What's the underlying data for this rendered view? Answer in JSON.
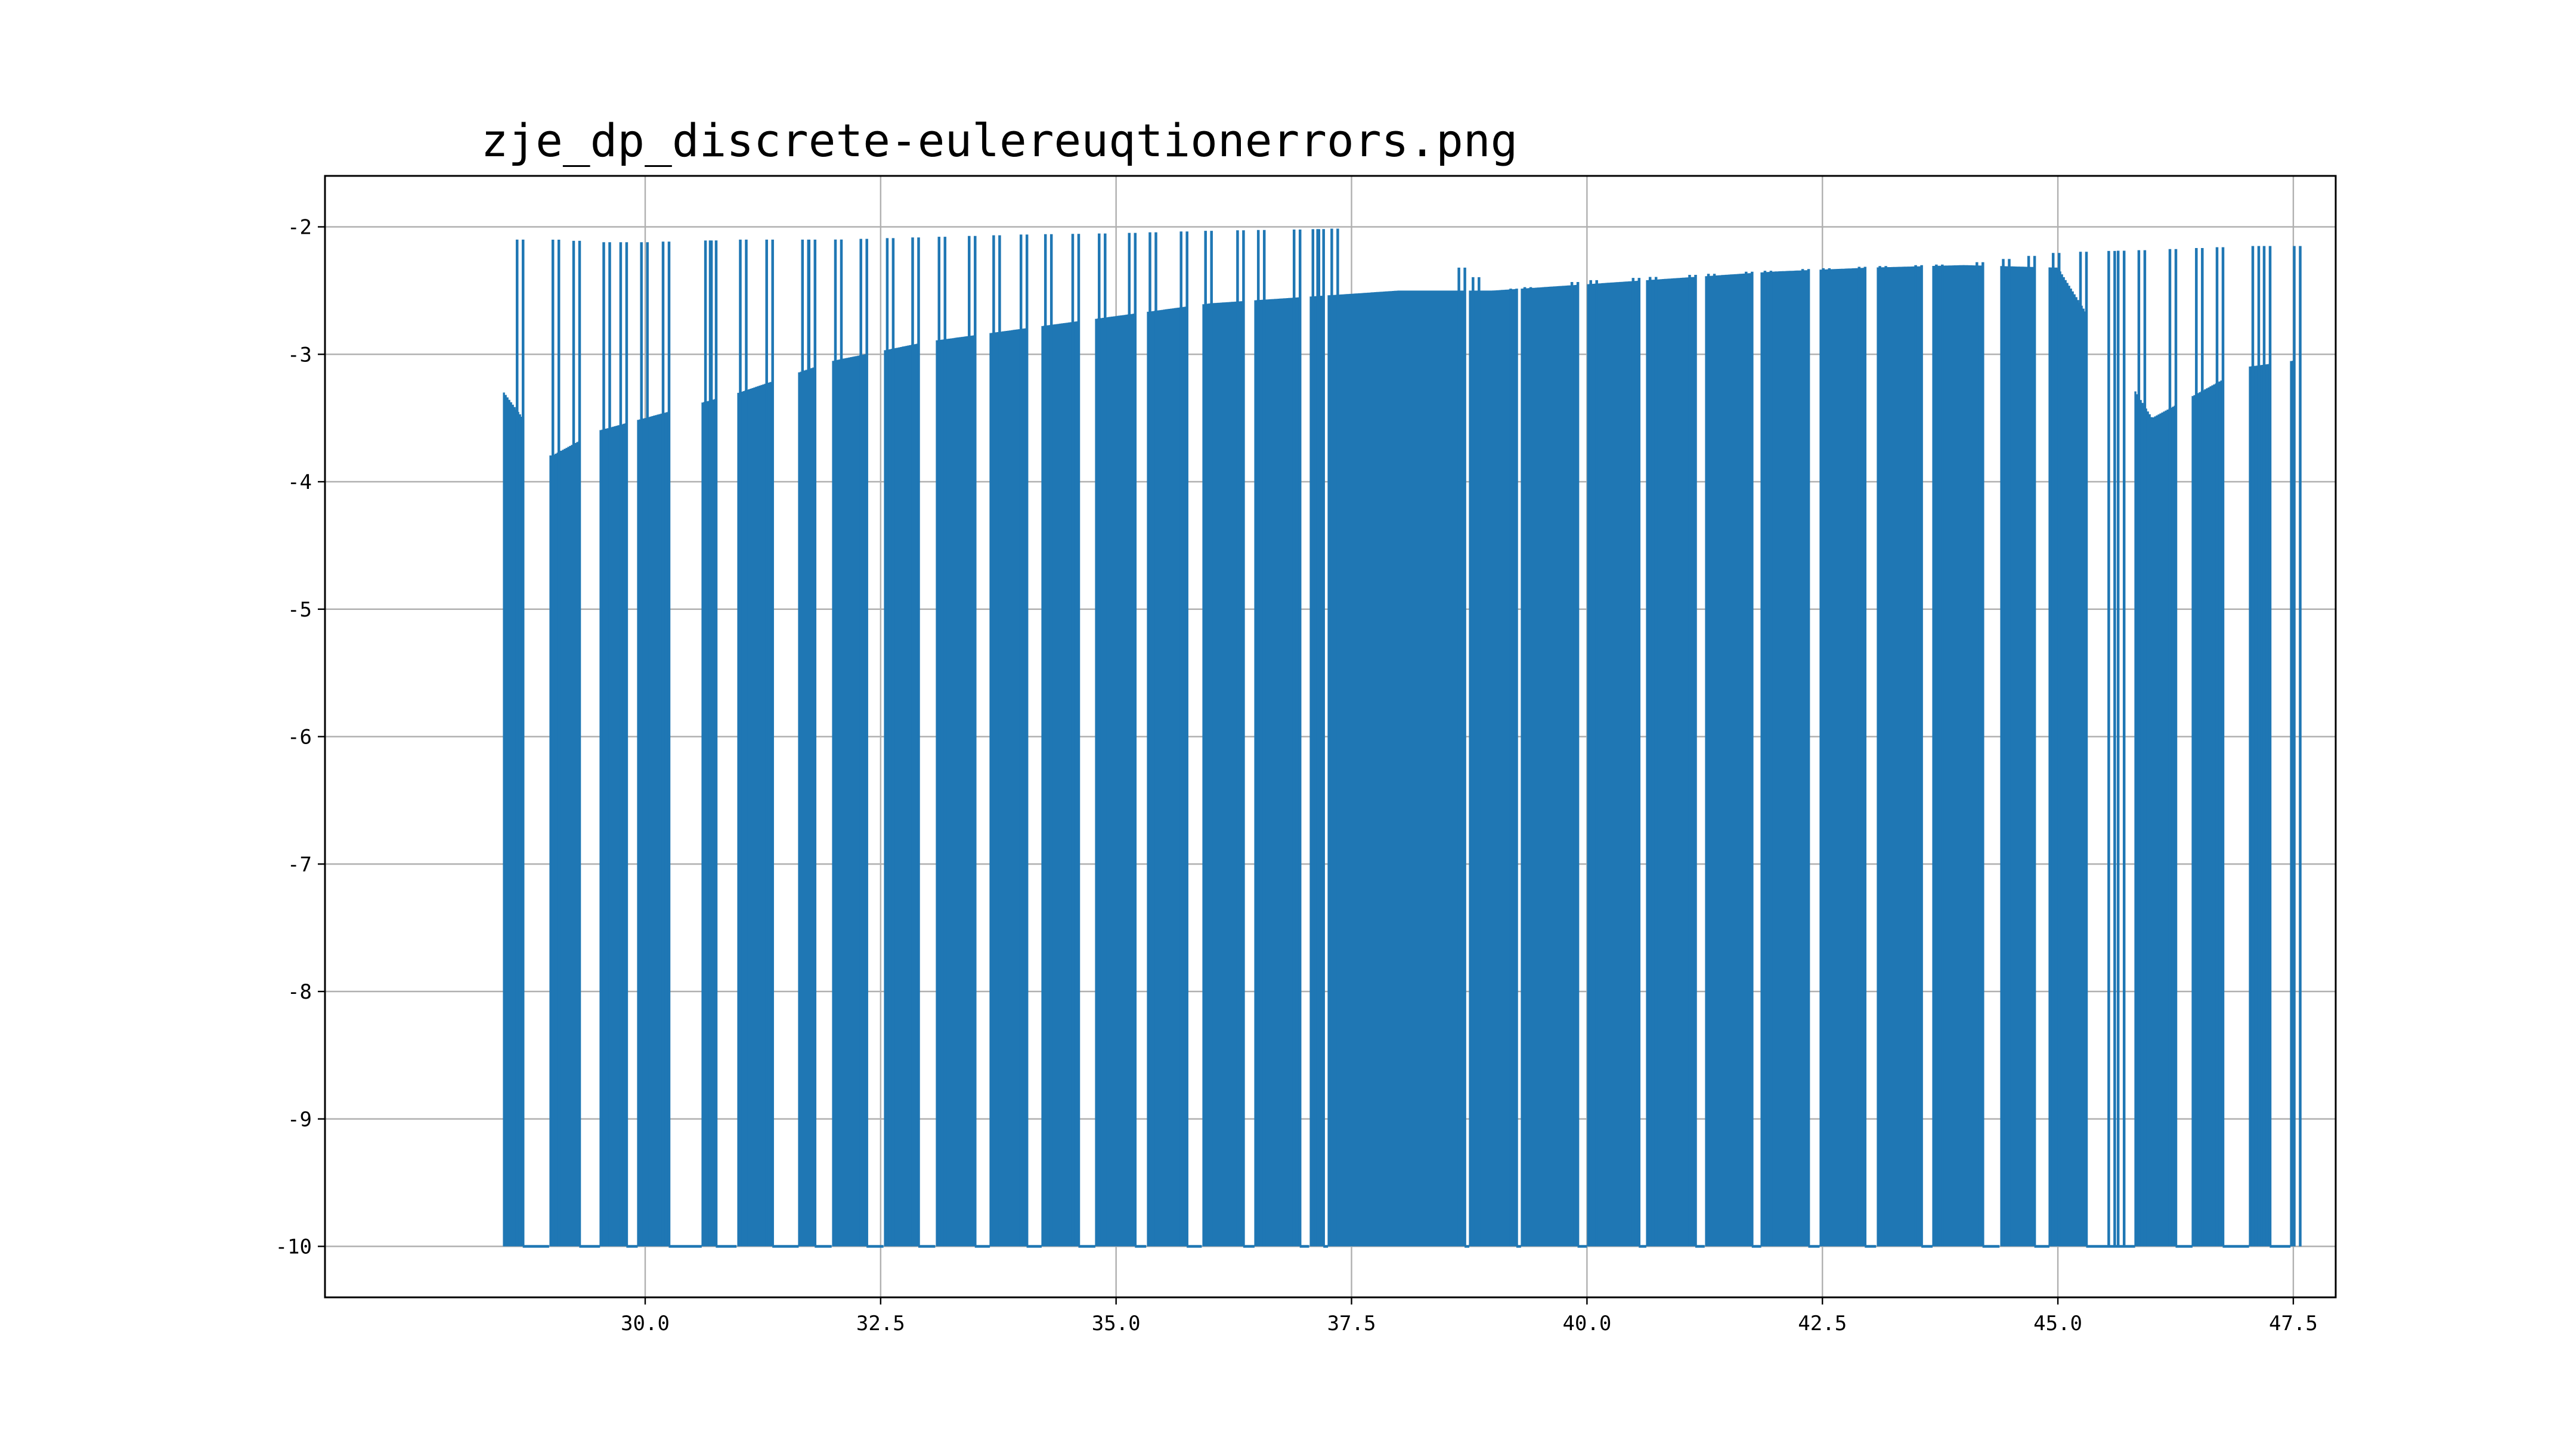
{
  "chart_data": {
    "type": "line",
    "title": "zje_dp_discrete-eulereuqtionerrors.png",
    "xlabel": "",
    "ylabel": "",
    "xlim": [
      26.6,
      47.95
    ],
    "ylim": [
      -10.4,
      -1.6
    ],
    "x_ticks": [
      30.0,
      32.5,
      35.0,
      37.5,
      40.0,
      42.5,
      45.0,
      47.5
    ],
    "x_tick_labels": [
      "30.0",
      "32.5",
      "35.0",
      "37.5",
      "40.0",
      "42.5",
      "45.0",
      "47.5"
    ],
    "y_ticks": [
      -2,
      -3,
      -4,
      -5,
      -6,
      -7,
      -8,
      -9,
      -10
    ],
    "y_tick_labels": [
      "-2",
      "-3",
      "-4",
      "-5",
      "-6",
      "-7",
      "-8",
      "-9",
      "-10"
    ],
    "grid": true,
    "legend": "none",
    "series_color": "#1f77b4",
    "series": [
      {
        "x_start": 28.5,
        "x_end": 47.5,
        "floor": -10,
        "envelope_x": [
          28.5,
          29.0,
          29.5,
          30.0,
          31.0,
          32.0,
          33.0,
          34.0,
          35.0,
          36.0,
          37.0,
          38.0,
          39.0,
          40.0,
          41.0,
          42.0,
          43.0,
          44.0,
          45.0,
          46.0,
          47.0,
          47.5
        ],
        "envelope_peak": [
          -2.1,
          -2.1,
          -2.12,
          -2.12,
          -2.1,
          -2.1,
          -2.08,
          -2.06,
          -2.05,
          -2.03,
          -2.02,
          -2.0,
          -2.5,
          -2.42,
          -2.38,
          -2.34,
          -2.31,
          -2.29,
          -2.2,
          -2.18,
          -2.15,
          -2.15
        ],
        "envelope_shoulder": [
          -3.3,
          -3.8,
          -3.6,
          -3.5,
          -3.3,
          -3.05,
          -2.9,
          -2.8,
          -2.7,
          -2.6,
          -2.55,
          -2.5,
          -2.5,
          -2.45,
          -2.4,
          -2.35,
          -2.32,
          -2.3,
          -2.32,
          -3.5,
          -3.1,
          -3.05
        ],
        "gap_x": [
          28.7,
          29.3,
          29.8,
          30.25,
          30.75,
          31.35,
          31.8,
          32.35,
          32.9,
          33.5,
          34.05,
          34.6,
          35.2,
          35.75,
          36.35,
          36.95,
          37.2,
          38.7,
          39.25,
          39.9,
          40.55,
          41.15,
          41.75,
          42.35,
          42.95,
          43.55,
          44.2,
          44.75,
          45.3,
          45.6,
          46.25,
          46.75,
          47.25
        ],
        "gap_width": [
          0.28,
          0.22,
          0.12,
          0.35,
          0.22,
          0.28,
          0.18,
          0.18,
          0.18,
          0.16,
          0.16,
          0.18,
          0.12,
          0.16,
          0.12,
          0.1,
          0.05,
          0.05,
          0.05,
          0.1,
          0.08,
          0.1,
          0.1,
          0.12,
          0.12,
          0.12,
          0.18,
          0.16,
          0.3,
          0.22,
          0.18,
          0.28,
          0.22
        ]
      }
    ]
  }
}
